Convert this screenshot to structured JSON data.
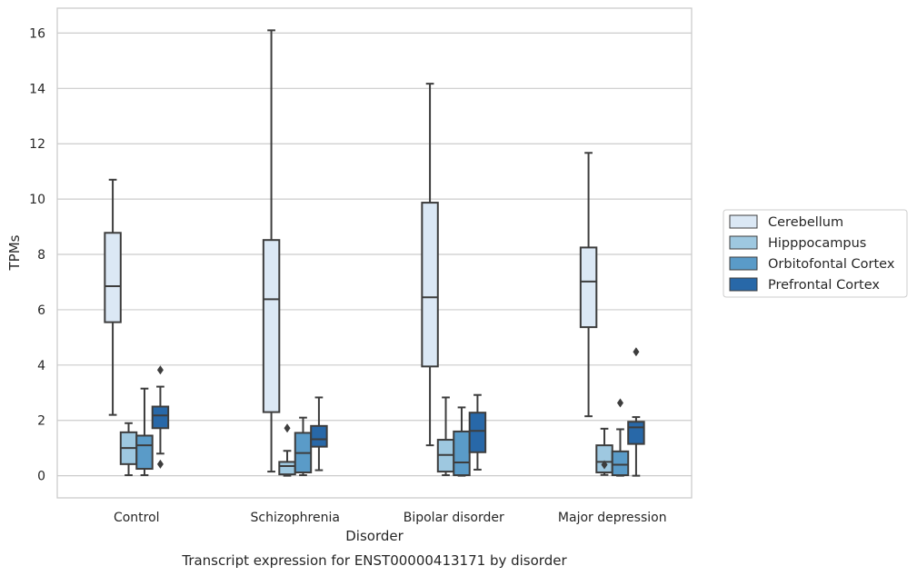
{
  "caption": "Transcript expression for ENST00000413171 by disorder",
  "chart_data": {
    "type": "box",
    "title": "",
    "xlabel": "Disorder",
    "ylabel": "TPMs",
    "ylim": [
      -0.8,
      16.9
    ],
    "yticks": [
      0,
      2,
      4,
      6,
      8,
      10,
      12,
      14,
      16
    ],
    "grid": "horizontal",
    "legend_position": "right",
    "categories": [
      "Control",
      "Schizophrenia",
      "Bipolar disorder",
      "Major depression"
    ],
    "series": [
      {
        "name": "Cerebellum",
        "color": "#dbe8f5",
        "boxes": [
          {
            "whislo": 2.2,
            "q1": 5.55,
            "med": 6.85,
            "q3": 8.78,
            "whishi": 10.7,
            "fliers": []
          },
          {
            "whislo": 0.15,
            "q1": 2.3,
            "med": 6.38,
            "q3": 8.52,
            "whishi": 16.1,
            "fliers": []
          },
          {
            "whislo": 1.1,
            "q1": 3.95,
            "med": 6.45,
            "q3": 9.87,
            "whishi": 14.17,
            "fliers": []
          },
          {
            "whislo": 2.15,
            "q1": 5.37,
            "med": 7.02,
            "q3": 8.25,
            "whishi": 11.67,
            "fliers": []
          }
        ]
      },
      {
        "name": "Hipppocampus",
        "color": "#9ec8e0",
        "boxes": [
          {
            "whislo": 0.02,
            "q1": 0.42,
            "med": 1.0,
            "q3": 1.57,
            "whishi": 1.9,
            "fliers": []
          },
          {
            "whislo": 0.0,
            "q1": 0.05,
            "med": 0.35,
            "q3": 0.5,
            "whishi": 0.9,
            "fliers": [
              1.72
            ]
          },
          {
            "whislo": 0.02,
            "q1": 0.15,
            "med": 0.75,
            "q3": 1.3,
            "whishi": 2.83,
            "fliers": []
          },
          {
            "whislo": 0.03,
            "q1": 0.12,
            "med": 0.5,
            "q3": 1.1,
            "whishi": 1.7,
            "fliers": [
              0.4
            ]
          }
        ]
      },
      {
        "name": "Orbitofontal Cortex",
        "color": "#5a9bc8",
        "boxes": [
          {
            "whislo": 0.02,
            "q1": 0.25,
            "med": 1.1,
            "q3": 1.45,
            "whishi": 3.15,
            "fliers": []
          },
          {
            "whislo": 0.02,
            "q1": 0.12,
            "med": 0.82,
            "q3": 1.55,
            "whishi": 2.1,
            "fliers": []
          },
          {
            "whislo": 0.0,
            "q1": 0.02,
            "med": 0.48,
            "q3": 1.6,
            "whishi": 2.47,
            "fliers": []
          },
          {
            "whislo": 0.0,
            "q1": 0.02,
            "med": 0.4,
            "q3": 0.88,
            "whishi": 1.68,
            "fliers": [
              2.63
            ]
          }
        ]
      },
      {
        "name": "Prefrontal Cortex",
        "color": "#2868a8",
        "boxes": [
          {
            "whislo": 0.8,
            "q1": 1.72,
            "med": 2.18,
            "q3": 2.5,
            "whishi": 3.22,
            "fliers": [
              3.82,
              0.42
            ]
          },
          {
            "whislo": 0.2,
            "q1": 1.05,
            "med": 1.32,
            "q3": 1.8,
            "whishi": 2.83,
            "fliers": []
          },
          {
            "whislo": 0.22,
            "q1": 0.85,
            "med": 1.62,
            "q3": 2.28,
            "whishi": 2.92,
            "fliers": []
          },
          {
            "whislo": 0.0,
            "q1": 1.15,
            "med": 1.75,
            "q3": 1.95,
            "whishi": 2.12,
            "fliers": [
              4.48
            ]
          }
        ]
      }
    ]
  }
}
